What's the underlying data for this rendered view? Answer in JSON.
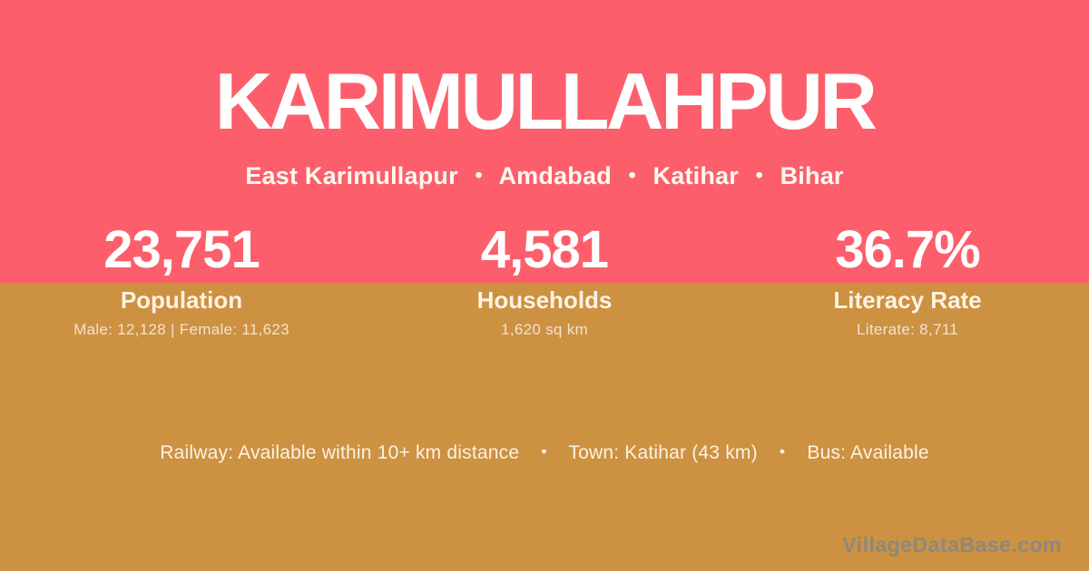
{
  "theme": {
    "pink": "#fc5f6b",
    "gold": "#cd9142",
    "cream": "rgba(255,255,255,0.75)",
    "watermark": "#8e887c"
  },
  "header": {
    "title": "KARIMULLAHPUR",
    "separator": "•",
    "subtitle_parts": [
      "East Karimullapur",
      "Amdabad",
      "Katihar",
      "Bihar"
    ]
  },
  "stats": [
    {
      "value": "23,751",
      "label": "Population",
      "detail": "Male: 12,128 | Female: 11,623"
    },
    {
      "value": "4,581",
      "label": "Households",
      "detail": "1,620 sq km"
    },
    {
      "value": "36.7%",
      "label": "Literacy Rate",
      "detail": "Literate: 8,711"
    }
  ],
  "footer": {
    "separator": "•",
    "info_parts": [
      "Railway: Available within 10+ km distance",
      "Town: Katihar (43 km)",
      "Bus: Available"
    ],
    "watermark": "VillageDataBase.com"
  }
}
